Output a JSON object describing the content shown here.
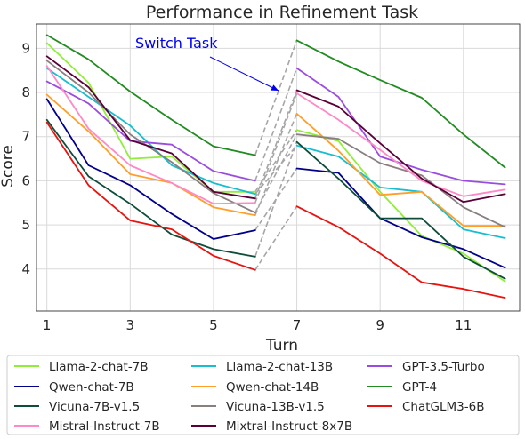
{
  "chart_data": {
    "type": "line",
    "title": "Performance in Refinement Task",
    "xlabel": "Turn",
    "ylabel": "Score",
    "xlim": [
      0.75,
      12.35
    ],
    "ylim": [
      3.05,
      9.55
    ],
    "xticks": [
      1,
      3,
      5,
      7,
      9,
      11
    ],
    "yticks": [
      4,
      5,
      6,
      7,
      8,
      9
    ],
    "grid": true,
    "legend_position": "bottom",
    "segments": [
      [
        1,
        6
      ],
      [
        7,
        12
      ]
    ],
    "annotation": {
      "text": "Switch Task",
      "color": "#0000ee"
    },
    "x": [
      1,
      2,
      3,
      4,
      5,
      6,
      7,
      8,
      9,
      10,
      11,
      12
    ],
    "series": [
      {
        "name": "Llama-2-chat-7B",
        "color": "#90ee3a",
        "values": [
          9.12,
          8.22,
          6.5,
          6.55,
          5.75,
          5.75,
          7.15,
          6.9,
          5.75,
          4.75,
          4.35,
          3.72
        ]
      },
      {
        "name": "Llama-2-chat-13B",
        "color": "#17becf",
        "values": [
          8.55,
          7.9,
          7.25,
          6.35,
          5.95,
          5.7,
          6.8,
          6.55,
          5.85,
          5.75,
          4.9,
          4.7
        ]
      },
      {
        "name": "GPT-3.5-Turbo",
        "color": "#9a4ce0",
        "values": [
          8.25,
          7.75,
          6.9,
          6.82,
          6.22,
          6.0,
          8.55,
          7.9,
          6.55,
          6.25,
          6.0,
          5.92
        ]
      },
      {
        "name": "Qwen-chat-7B",
        "color": "#00008b",
        "values": [
          7.85,
          6.35,
          5.9,
          5.25,
          4.68,
          4.88,
          6.28,
          6.18,
          5.15,
          4.72,
          4.45,
          4.03
        ]
      },
      {
        "name": "Qwen-chat-14B",
        "color": "#ff9f2a",
        "values": [
          7.95,
          7.12,
          6.15,
          5.95,
          5.4,
          5.22,
          7.52,
          6.68,
          5.68,
          5.75,
          4.98,
          4.98
        ]
      },
      {
        "name": "GPT-4",
        "color": "#228b22",
        "values": [
          9.3,
          8.75,
          8.02,
          7.38,
          6.78,
          6.58,
          9.18,
          8.7,
          8.28,
          7.88,
          7.05,
          6.3
        ]
      },
      {
        "name": "Vicuna-7B-v1.5",
        "color": "#0e4d3b",
        "values": [
          7.38,
          6.1,
          5.48,
          4.78,
          4.45,
          4.28,
          6.88,
          6.05,
          5.15,
          5.15,
          4.28,
          3.78
        ]
      },
      {
        "name": "Vicuna-13B-v1.5",
        "color": "#8a7f7f",
        "values": [
          8.72,
          8.0,
          7.05,
          6.42,
          5.72,
          5.28,
          7.05,
          6.95,
          6.4,
          6.12,
          5.4,
          4.95
        ]
      },
      {
        "name": "ChatGLM3-6B",
        "color": "#e8130e",
        "values": [
          7.32,
          5.9,
          5.1,
          4.9,
          4.3,
          3.98,
          5.42,
          4.95,
          4.35,
          3.7,
          3.55,
          3.35
        ]
      },
      {
        "name": "Mistral-Instruct-7B",
        "color": "#ff88c6",
        "values": [
          8.6,
          7.18,
          6.35,
          5.95,
          5.48,
          5.5,
          7.98,
          7.38,
          6.7,
          6.0,
          5.65,
          5.8
        ]
      },
      {
        "name": "Mixtral-Instruct-8x7B",
        "color": "#5a0036",
        "values": [
          8.82,
          8.12,
          6.92,
          6.62,
          5.75,
          5.6,
          8.05,
          7.68,
          6.85,
          6.05,
          5.52,
          5.7
        ]
      }
    ],
    "legend_order": [
      "Llama-2-chat-7B",
      "Llama-2-chat-13B",
      "GPT-3.5-Turbo",
      "Qwen-chat-7B",
      "Qwen-chat-14B",
      "GPT-4",
      "Vicuna-7B-v1.5",
      "Vicuna-13B-v1.5",
      "ChatGLM3-6B",
      "Mistral-Instruct-7B",
      "Mixtral-Instruct-8x7B"
    ]
  }
}
